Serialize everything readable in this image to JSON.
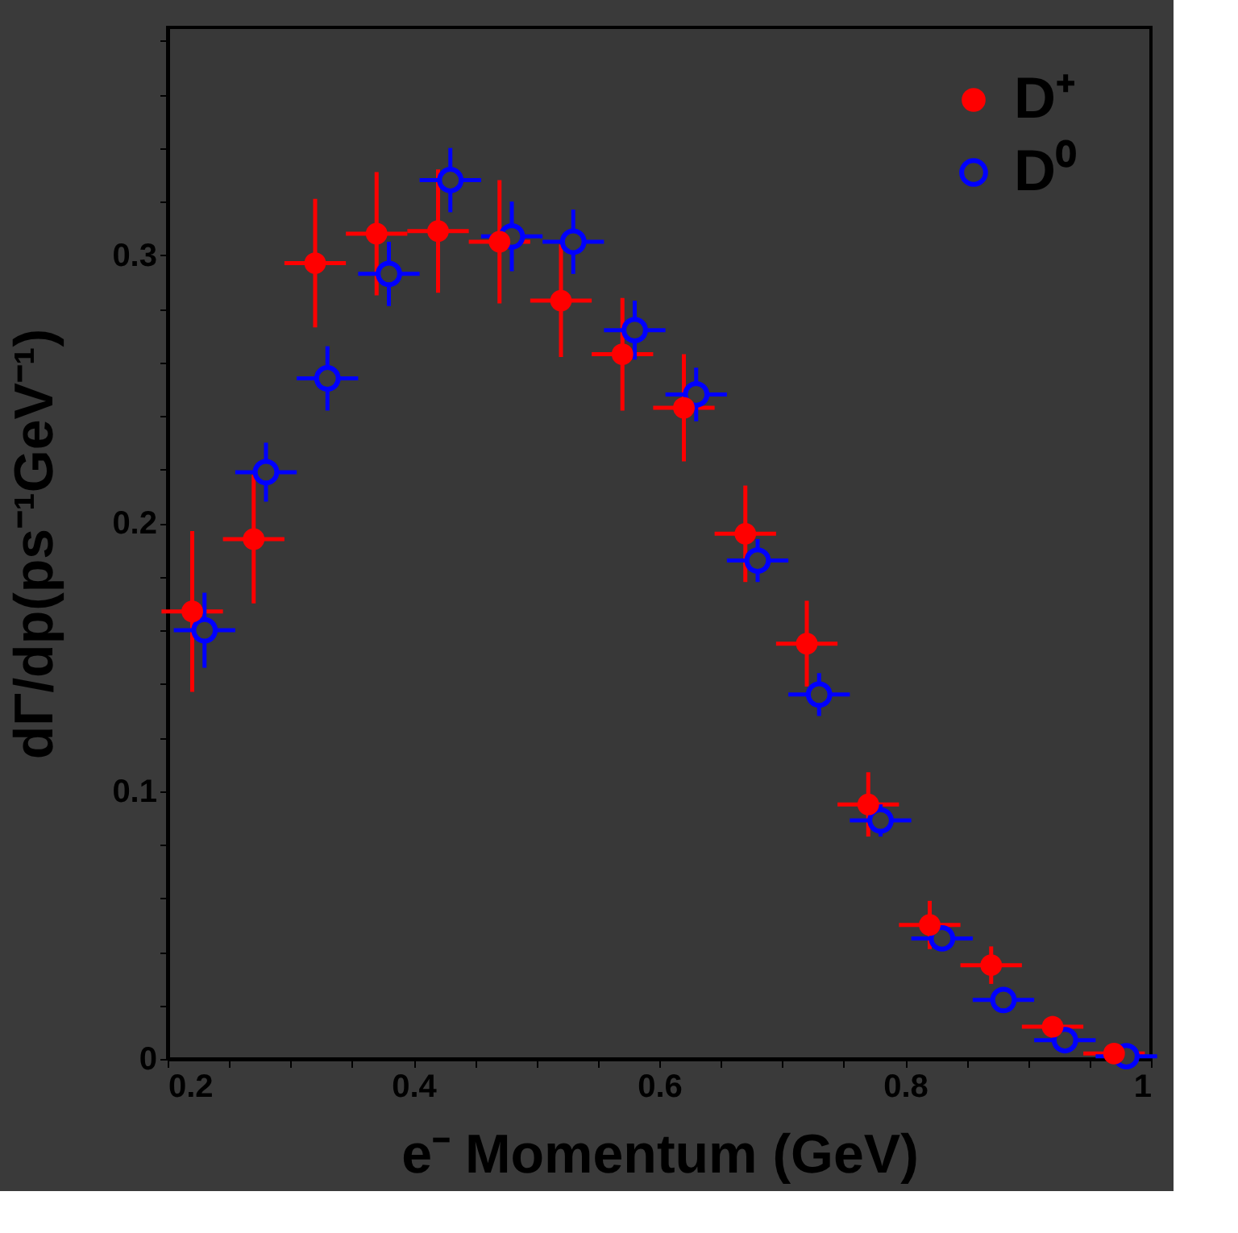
{
  "chart_data": {
    "type": "scatter",
    "xlabel": "e⁻ Momentum (GeV)",
    "ylabel": "dΓ/dp(ps⁻¹GeV⁻¹)",
    "xlim": [
      0.2,
      1.0
    ],
    "ylim": [
      0,
      0.385
    ],
    "xticks": [
      0.2,
      {
        "value": 0.25,
        "label": null
      },
      {
        "value": 0.3,
        "label": null
      },
      {
        "value": 0.35,
        "label": null
      },
      0.4,
      {
        "value": 0.45,
        "label": null
      },
      {
        "value": 0.5,
        "label": null
      },
      {
        "value": 0.55,
        "label": null
      },
      0.6,
      {
        "value": 0.65,
        "label": null
      },
      {
        "value": 0.7,
        "label": null
      },
      {
        "value": 0.75,
        "label": null
      },
      0.8,
      {
        "value": 0.85,
        "label": null
      },
      {
        "value": 0.9,
        "label": null
      },
      {
        "value": 0.95,
        "label": null
      },
      1
    ],
    "yticks": [
      0,
      {
        "value": 0.02,
        "label": null
      },
      {
        "value": 0.04,
        "label": null
      },
      {
        "value": 0.06,
        "label": null
      },
      {
        "value": 0.08,
        "label": null
      },
      0.1,
      {
        "value": 0.12,
        "label": null
      },
      {
        "value": 0.14,
        "label": null
      },
      {
        "value": 0.16,
        "label": null
      },
      {
        "value": 0.18,
        "label": null
      },
      0.2,
      {
        "value": 0.22,
        "label": null
      },
      {
        "value": 0.24,
        "label": null
      },
      {
        "value": 0.26,
        "label": null
      },
      {
        "value": 0.28,
        "label": null
      },
      0.3,
      {
        "value": 0.32,
        "label": null
      },
      {
        "value": 0.34,
        "label": null
      },
      {
        "value": 0.36,
        "label": null
      },
      {
        "value": 0.38,
        "label": null
      }
    ],
    "grid": false,
    "legend": "top right",
    "marker": "circle",
    "series": [
      {
        "name": "D⁺",
        "color": "#ff0000",
        "x": [
          0.22,
          0.27,
          0.32,
          0.37,
          0.42,
          0.47,
          0.52,
          0.57,
          0.62,
          0.67,
          0.72,
          0.77,
          0.82,
          0.87,
          0.92,
          0.97
        ],
        "values": [
          0.167,
          0.194,
          0.297,
          0.308,
          0.309,
          0.305,
          0.283,
          0.263,
          0.243,
          0.196,
          0.155,
          0.095,
          0.05,
          0.035,
          0.012,
          0.002
        ],
        "errors": [
          0.03,
          0.024,
          0.024,
          0.023,
          0.023,
          0.023,
          0.021,
          0.021,
          0.02,
          0.018,
          0.016,
          0.012,
          0.009,
          0.007,
          0.004,
          0.002
        ],
        "xerrors": [
          0.025,
          0.025,
          0.025,
          0.025,
          0.025,
          0.025,
          0.025,
          0.025,
          0.025,
          0.025,
          0.025,
          0.025,
          0.025,
          0.025,
          0.025,
          0.025
        ]
      },
      {
        "name": "D⁰",
        "color": "#0000ff",
        "x": [
          0.23,
          0.28,
          0.33,
          0.38,
          0.43,
          0.48,
          0.53,
          0.58,
          0.63,
          0.68,
          0.73,
          0.78,
          0.83,
          0.88,
          0.93,
          0.98
        ],
        "values": [
          0.16,
          0.219,
          0.254,
          0.293,
          0.328,
          0.307,
          0.305,
          0.272,
          0.248,
          0.186,
          0.136,
          0.089,
          0.045,
          0.022,
          0.007,
          0.001
        ],
        "errors": [
          0.014,
          0.011,
          0.012,
          0.012,
          0.012,
          0.013,
          0.012,
          0.011,
          0.01,
          0.008,
          0.008,
          0.006,
          0.004,
          0.002,
          0.002,
          0.001
        ],
        "xerrors": [
          0.025,
          0.025,
          0.025,
          0.025,
          0.025,
          0.025,
          0.025,
          0.025,
          0.025,
          0.025,
          0.025,
          0.025,
          0.025,
          0.025,
          0.025,
          0.025
        ]
      }
    ]
  }
}
